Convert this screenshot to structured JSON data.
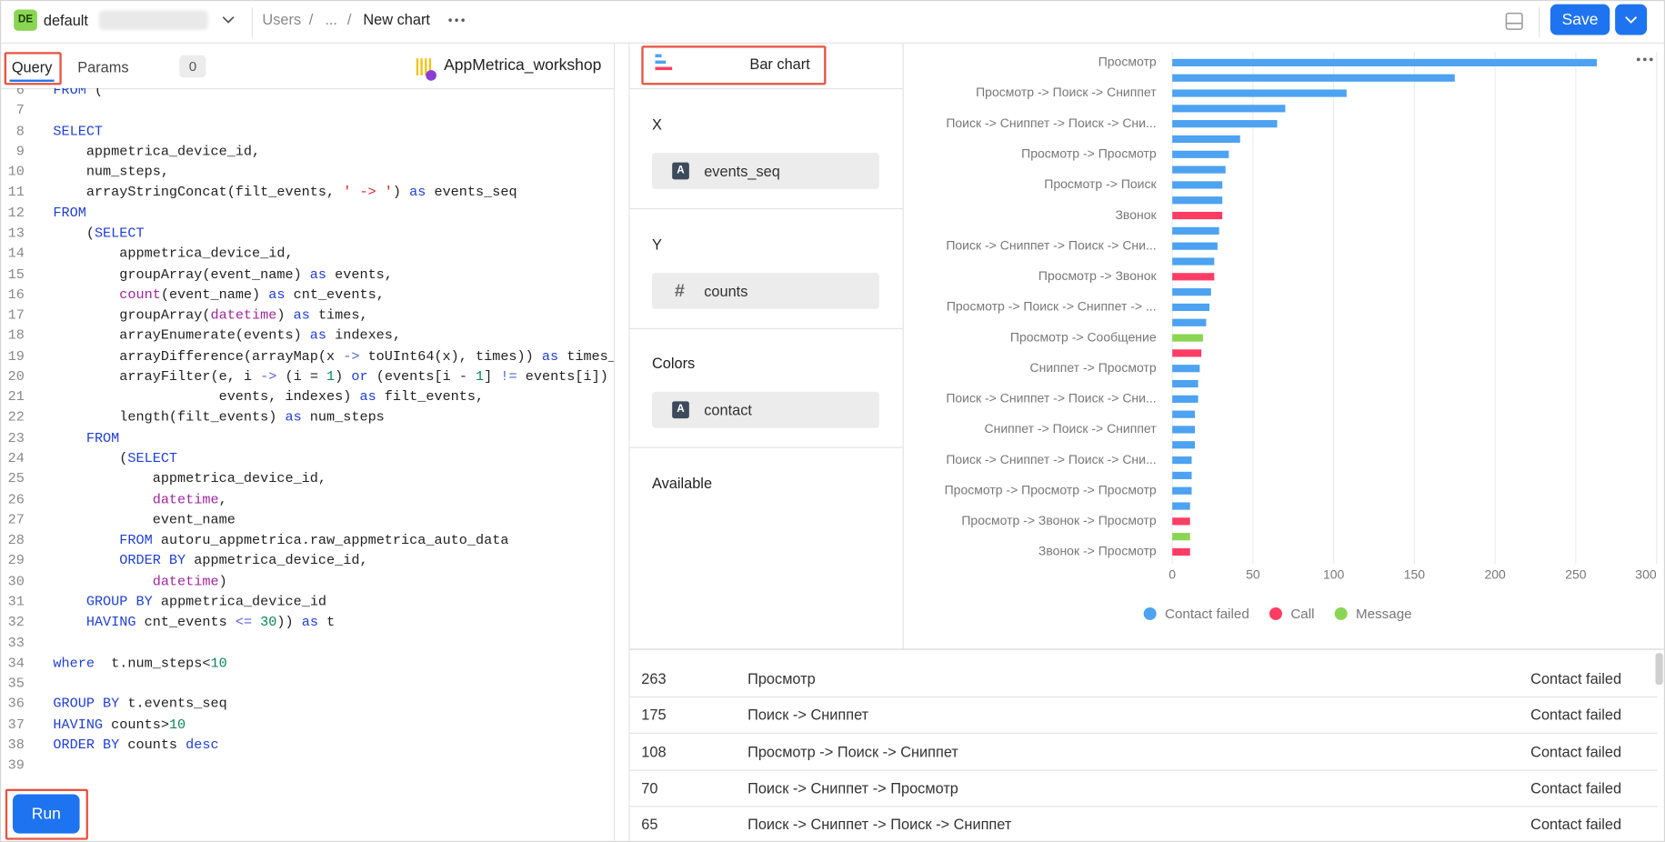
{
  "header": {
    "workspace_badge": "DE",
    "workspace": "default",
    "breadcrumbs": [
      "Users",
      "...",
      "New chart"
    ],
    "save": "Save"
  },
  "editor": {
    "tabs": [
      "Query",
      "Params"
    ],
    "params_count": 0,
    "connection": "AppMetrica_workshop",
    "run": "Run",
    "code_lines": [
      {
        "n": 6,
        "text": "FROM ("
      },
      {
        "n": 7
      },
      {
        "n": 8,
        "text": "SELECT"
      },
      {
        "n": 9,
        "text": "    appmetrica_device_id,"
      },
      {
        "n": 10,
        "text": "    num_steps,"
      },
      {
        "n": 11,
        "text": "    arrayStringConcat(filt_events, ' -> ') as events_seq"
      },
      {
        "n": 12,
        "text": "FROM"
      },
      {
        "n": 13,
        "text": "    (SELECT"
      },
      {
        "n": 14,
        "text": "        appmetrica_device_id,"
      },
      {
        "n": 15,
        "text": "        groupArray(event_name) as events,"
      },
      {
        "n": 16,
        "text": "        count(event_name) as cnt_events,"
      },
      {
        "n": 17,
        "text": "        groupArray(datetime) as times,"
      },
      {
        "n": 18,
        "text": "        arrayEnumerate(events) as indexes,"
      },
      {
        "n": 19,
        "text": "        arrayDifference(arrayMap(x -> toUInt64(x), times)) as times_dif"
      },
      {
        "n": 20,
        "text": "        arrayFilter(e, i -> (i = 1) or (events[i - 1] != events[i]) or"
      },
      {
        "n": 21,
        "text": "                    events, indexes) as filt_events,"
      },
      {
        "n": 22,
        "text": "        length(filt_events) as num_steps"
      },
      {
        "n": 23,
        "text": "    FROM"
      },
      {
        "n": 24,
        "text": "        (SELECT"
      },
      {
        "n": 25,
        "text": "            appmetrica_device_id,"
      },
      {
        "n": 26,
        "text": "            datetime,"
      },
      {
        "n": 27,
        "text": "            event_name"
      },
      {
        "n": 28,
        "text": "        FROM autoru_appmetrica.raw_appmetrica_auto_data"
      },
      {
        "n": 29,
        "text": "        ORDER BY appmetrica_device_id,"
      },
      {
        "n": 30,
        "text": "            datetime)"
      },
      {
        "n": 31,
        "text": "    GROUP BY appmetrica_device_id"
      },
      {
        "n": 32,
        "text": "    HAVING cnt_events <= 30)) as t"
      },
      {
        "n": 33
      },
      {
        "n": 34,
        "text": "where  t.num_steps<10"
      },
      {
        "n": 35
      },
      {
        "n": 36,
        "text": "GROUP BY t.events_seq"
      },
      {
        "n": 37,
        "text": "HAVING counts>10"
      },
      {
        "n": 38,
        "text": "ORDER BY counts desc"
      },
      {
        "n": 39
      }
    ]
  },
  "wizard": {
    "chart_type": "Bar chart",
    "sections": [
      {
        "title": "X",
        "field": {
          "icon": "A",
          "name": "events_seq"
        }
      },
      {
        "title": "Y",
        "field": {
          "icon": "#",
          "name": "counts"
        }
      },
      {
        "title": "Colors",
        "field": {
          "icon": "A",
          "name": "contact"
        }
      },
      {
        "title": "Available"
      }
    ]
  },
  "chart_data": {
    "type": "bar",
    "orientation": "horizontal",
    "categories": [
      "Просмотр",
      null,
      "Просмотр -> Поиск -> Сниппет",
      null,
      "Поиск -> Сниппет -> Поиск -> Сни...",
      null,
      "Просмотр -> Просмотр",
      null,
      "Просмотр -> Поиск",
      null,
      "Звонок",
      null,
      "Поиск -> Сниппет -> Поиск -> Сни...",
      null,
      "Просмотр -> Звонок",
      null,
      "Просмотр -> Поиск -> Сниппет -> ...",
      null,
      "Просмотр -> Сообщение",
      null,
      "Сниппет -> Просмотр",
      null,
      "Поиск -> Сниппет -> Поиск -> Сни...",
      null,
      "Сниппет -> Поиск -> Сниппет",
      null,
      "Поиск -> Сниппет -> Поиск -> Сни...",
      null,
      "Просмотр -> Просмотр -> Просмотр",
      null,
      "Просмотр -> Звонок -> Просмотр",
      null,
      "Звонок -> Просмотр"
    ],
    "series": [
      {
        "name": "Contact failed",
        "color": "#4da2f1",
        "values": [
          263,
          175,
          108,
          70,
          65,
          42,
          35,
          33,
          31,
          31,
          null,
          29,
          28,
          26,
          null,
          24,
          23,
          21,
          null,
          null,
          17,
          16,
          16,
          14,
          14,
          14,
          12,
          12,
          12,
          11,
          null,
          null,
          null
        ]
      },
      {
        "name": "Call",
        "color": "#ff3d64",
        "values": [
          null,
          null,
          null,
          null,
          null,
          null,
          null,
          null,
          null,
          null,
          31,
          null,
          null,
          null,
          26,
          null,
          null,
          null,
          null,
          18,
          null,
          null,
          null,
          null,
          null,
          null,
          null,
          null,
          null,
          null,
          11,
          null,
          11
        ]
      },
      {
        "name": "Message",
        "color": "#8ad554",
        "values": [
          null,
          null,
          null,
          null,
          null,
          null,
          null,
          null,
          null,
          null,
          null,
          null,
          null,
          null,
          null,
          null,
          null,
          null,
          19,
          null,
          null,
          null,
          null,
          null,
          null,
          null,
          null,
          null,
          null,
          null,
          null,
          11,
          null
        ]
      }
    ],
    "xlim": [
      0,
      300
    ],
    "xticks": [
      0,
      50,
      100,
      150,
      200,
      250,
      300
    ],
    "grid": true,
    "legend": "bottom"
  },
  "table": {
    "rows": [
      [
        263,
        "Просмотр",
        "Contact failed"
      ],
      [
        175,
        "Поиск -> Сниппет",
        "Contact failed"
      ],
      [
        108,
        "Просмотр -> Поиск -> Сниппет",
        "Contact failed"
      ],
      [
        70,
        "Поиск -> Сниппет -> Просмотр",
        "Contact failed"
      ],
      [
        65,
        "Поиск -> Сниппет -> Поиск -> Сниппет",
        "Contact failed"
      ]
    ]
  }
}
